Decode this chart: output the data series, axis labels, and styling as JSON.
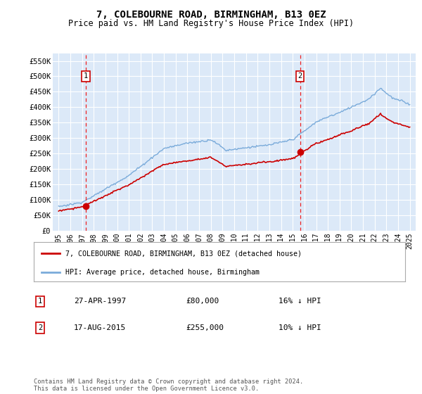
{
  "title": "7, COLEBOURNE ROAD, BIRMINGHAM, B13 0EZ",
  "subtitle": "Price paid vs. HM Land Registry's House Price Index (HPI)",
  "red_label": "7, COLEBOURNE ROAD, BIRMINGHAM, B13 0EZ (detached house)",
  "blue_label": "HPI: Average price, detached house, Birmingham",
  "transactions": [
    {
      "num": 1,
      "date": 1997.32,
      "price": 80000,
      "date_str": "27-APR-1997",
      "price_str": "£80,000",
      "pct_str": "16% ↓ HPI"
    },
    {
      "num": 2,
      "date": 2015.63,
      "price": 255000,
      "date_str": "17-AUG-2015",
      "price_str": "£255,000",
      "pct_str": "10% ↓ HPI"
    }
  ],
  "ylim": [
    0,
    575000
  ],
  "xlim": [
    1994.5,
    2025.5
  ],
  "yticks": [
    0,
    50000,
    100000,
    150000,
    200000,
    250000,
    300000,
    350000,
    400000,
    450000,
    500000,
    550000
  ],
  "ytick_labels": [
    "£0",
    "£50K",
    "£100K",
    "£150K",
    "£200K",
    "£250K",
    "£300K",
    "£350K",
    "£400K",
    "£450K",
    "£500K",
    "£550K"
  ],
  "xticks": [
    1995,
    1996,
    1997,
    1998,
    1999,
    2000,
    2001,
    2002,
    2003,
    2004,
    2005,
    2006,
    2007,
    2008,
    2009,
    2010,
    2011,
    2012,
    2013,
    2014,
    2015,
    2016,
    2017,
    2018,
    2019,
    2020,
    2021,
    2022,
    2023,
    2024,
    2025
  ],
  "plot_bg": "#dce9f8",
  "grid_color": "#ffffff",
  "red_color": "#cc0000",
  "blue_color": "#7aabda",
  "vline_color": "#ee2222",
  "marker_color": "#cc0000",
  "footnote": "Contains HM Land Registry data © Crown copyright and database right 2024.\nThis data is licensed under the Open Government Licence v3.0."
}
